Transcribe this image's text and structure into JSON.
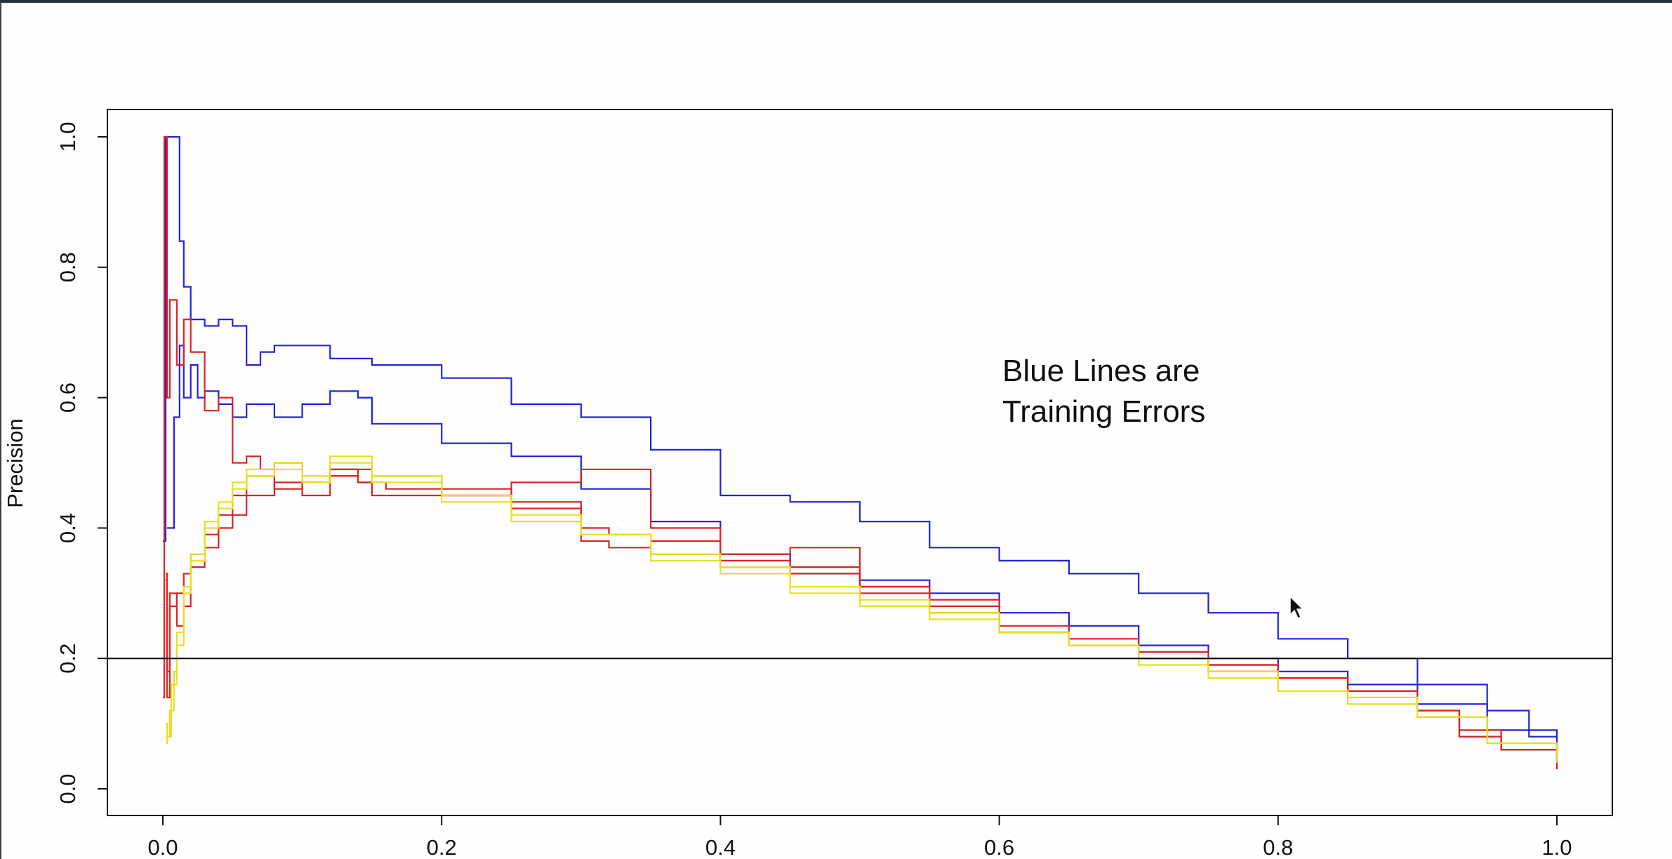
{
  "chart_data": {
    "type": "line",
    "title": "",
    "xlabel": "",
    "ylabel": "Precision",
    "xlim": [
      -0.04,
      1.04
    ],
    "ylim": [
      -0.04,
      1.04
    ],
    "x_ticks": [
      0.0,
      0.2,
      0.4,
      0.6,
      0.8,
      1.0
    ],
    "x_tick_labels": [
      "0.0",
      "0.2",
      "0.4",
      "0.6",
      "0.8",
      "1.0"
    ],
    "y_ticks": [
      0.0,
      0.2,
      0.4,
      0.6,
      0.8,
      1.0
    ],
    "y_tick_labels": [
      "0.0",
      "0.2",
      "0.4",
      "0.6",
      "0.8",
      "1.0"
    ],
    "grid": false,
    "legend": "none",
    "reference_line": {
      "y": 0.2,
      "color": "#000000"
    },
    "annotation": [
      "Blue Lines are",
      "Training Errors"
    ],
    "series": [
      {
        "color": "#2222dd",
        "x": [
          0.0,
          0.002,
          0.003,
          0.005,
          0.008,
          0.01,
          0.012,
          0.015,
          0.02,
          0.03,
          0.04,
          0.05,
          0.06,
          0.07,
          0.08,
          0.1,
          0.12,
          0.15,
          0.2,
          0.25,
          0.3,
          0.35,
          0.4,
          0.45,
          0.5,
          0.55,
          0.6,
          0.65,
          0.7,
          0.75,
          0.8,
          0.85,
          0.9,
          0.95,
          0.98,
          1.0
        ],
        "y": [
          0.38,
          1.0,
          1.0,
          1.0,
          1.0,
          1.0,
          0.84,
          0.77,
          0.72,
          0.71,
          0.72,
          0.71,
          0.65,
          0.67,
          0.68,
          0.68,
          0.66,
          0.65,
          0.63,
          0.59,
          0.57,
          0.52,
          0.45,
          0.44,
          0.41,
          0.37,
          0.35,
          0.33,
          0.3,
          0.27,
          0.23,
          0.2,
          0.16,
          0.12,
          0.08,
          0.04
        ]
      },
      {
        "color": "#2222dd",
        "x": [
          0.003,
          0.008,
          0.012,
          0.015,
          0.02,
          0.025,
          0.03,
          0.04,
          0.05,
          0.06,
          0.08,
          0.1,
          0.12,
          0.14,
          0.15,
          0.2,
          0.25,
          0.3,
          0.35,
          0.4,
          0.45,
          0.5,
          0.55,
          0.6,
          0.65,
          0.7,
          0.75,
          0.8,
          0.85,
          0.9,
          0.95,
          1.0
        ],
        "y": [
          0.4,
          0.57,
          0.68,
          0.6,
          0.65,
          0.6,
          0.61,
          0.59,
          0.57,
          0.59,
          0.57,
          0.59,
          0.61,
          0.6,
          0.56,
          0.53,
          0.51,
          0.46,
          0.41,
          0.36,
          0.33,
          0.32,
          0.3,
          0.27,
          0.25,
          0.22,
          0.2,
          0.18,
          0.16,
          0.13,
          0.09,
          0.04
        ]
      },
      {
        "color": "#dd2222",
        "x": [
          0.0,
          0.001,
          0.003,
          0.005,
          0.01,
          0.015,
          0.02,
          0.03,
          0.04,
          0.05,
          0.06,
          0.07,
          0.08,
          0.1,
          0.12,
          0.15,
          0.2,
          0.25,
          0.3,
          0.35,
          0.4,
          0.45,
          0.5,
          0.55,
          0.6,
          0.65,
          0.7,
          0.75,
          0.8,
          0.85,
          0.9,
          0.93,
          0.96,
          1.0
        ],
        "y": [
          0.14,
          1.0,
          0.6,
          0.75,
          0.65,
          0.72,
          0.67,
          0.58,
          0.6,
          0.5,
          0.51,
          0.49,
          0.5,
          0.47,
          0.49,
          0.48,
          0.45,
          0.47,
          0.49,
          0.4,
          0.36,
          0.37,
          0.31,
          0.29,
          0.24,
          0.23,
          0.2,
          0.18,
          0.17,
          0.15,
          0.12,
          0.08,
          0.06,
          0.03
        ]
      },
      {
        "color": "#dd2222",
        "x": [
          0.002,
          0.003,
          0.005,
          0.01,
          0.015,
          0.02,
          0.03,
          0.04,
          0.05,
          0.06,
          0.08,
          0.1,
          0.12,
          0.14,
          0.15,
          0.2,
          0.25,
          0.3,
          0.32,
          0.35,
          0.4,
          0.45,
          0.5,
          0.55,
          0.6,
          0.65,
          0.7,
          0.75,
          0.8,
          0.85,
          0.9,
          0.93,
          0.96,
          1.0
        ],
        "y": [
          0.33,
          0.18,
          0.3,
          0.25,
          0.28,
          0.34,
          0.37,
          0.4,
          0.42,
          0.45,
          0.47,
          0.45,
          0.48,
          0.47,
          0.45,
          0.46,
          0.44,
          0.4,
          0.39,
          0.38,
          0.34,
          0.34,
          0.3,
          0.27,
          0.24,
          0.22,
          0.21,
          0.19,
          0.17,
          0.15,
          0.12,
          0.09,
          0.06,
          0.03
        ]
      },
      {
        "color": "#dd2222",
        "x": [
          0.002,
          0.003,
          0.005,
          0.01,
          0.015,
          0.02,
          0.03,
          0.04,
          0.05,
          0.06,
          0.08,
          0.1,
          0.12,
          0.14,
          0.16,
          0.2,
          0.25,
          0.3,
          0.32,
          0.35,
          0.4,
          0.45,
          0.5,
          0.55,
          0.6,
          0.65,
          0.7,
          0.75,
          0.8,
          0.85,
          0.9,
          0.93,
          0.96,
          1.0
        ],
        "y": [
          0.32,
          0.14,
          0.28,
          0.3,
          0.33,
          0.36,
          0.39,
          0.42,
          0.45,
          0.48,
          0.46,
          0.47,
          0.49,
          0.47,
          0.46,
          0.45,
          0.43,
          0.38,
          0.37,
          0.36,
          0.35,
          0.33,
          0.31,
          0.28,
          0.25,
          0.22,
          0.2,
          0.19,
          0.17,
          0.15,
          0.11,
          0.08,
          0.06,
          0.04
        ]
      },
      {
        "color": "#e8e020",
        "x": [
          0.002,
          0.003,
          0.005,
          0.008,
          0.01,
          0.015,
          0.02,
          0.03,
          0.04,
          0.05,
          0.06,
          0.08,
          0.1,
          0.12,
          0.15,
          0.2,
          0.25,
          0.3,
          0.35,
          0.4,
          0.45,
          0.5,
          0.55,
          0.6,
          0.65,
          0.7,
          0.75,
          0.8,
          0.85,
          0.9,
          0.95,
          1.0
        ],
        "y": [
          0.07,
          0.08,
          0.12,
          0.18,
          0.22,
          0.3,
          0.36,
          0.41,
          0.44,
          0.47,
          0.49,
          0.5,
          0.48,
          0.51,
          0.47,
          0.44,
          0.42,
          0.39,
          0.36,
          0.33,
          0.3,
          0.28,
          0.26,
          0.24,
          0.22,
          0.2,
          0.18,
          0.15,
          0.14,
          0.11,
          0.07,
          0.04
        ]
      },
      {
        "color": "#e8e020",
        "x": [
          0.002,
          0.003,
          0.006,
          0.01,
          0.015,
          0.02,
          0.03,
          0.04,
          0.05,
          0.06,
          0.08,
          0.1,
          0.12,
          0.15,
          0.2,
          0.25,
          0.3,
          0.35,
          0.4,
          0.45,
          0.5,
          0.55,
          0.6,
          0.65,
          0.7,
          0.75,
          0.8,
          0.85,
          0.9,
          0.95,
          1.0
        ],
        "y": [
          0.1,
          0.08,
          0.16,
          0.24,
          0.31,
          0.35,
          0.4,
          0.43,
          0.46,
          0.48,
          0.49,
          0.47,
          0.5,
          0.48,
          0.45,
          0.41,
          0.39,
          0.35,
          0.34,
          0.31,
          0.29,
          0.27,
          0.24,
          0.22,
          0.19,
          0.17,
          0.15,
          0.13,
          0.11,
          0.07,
          0.04
        ]
      }
    ]
  }
}
